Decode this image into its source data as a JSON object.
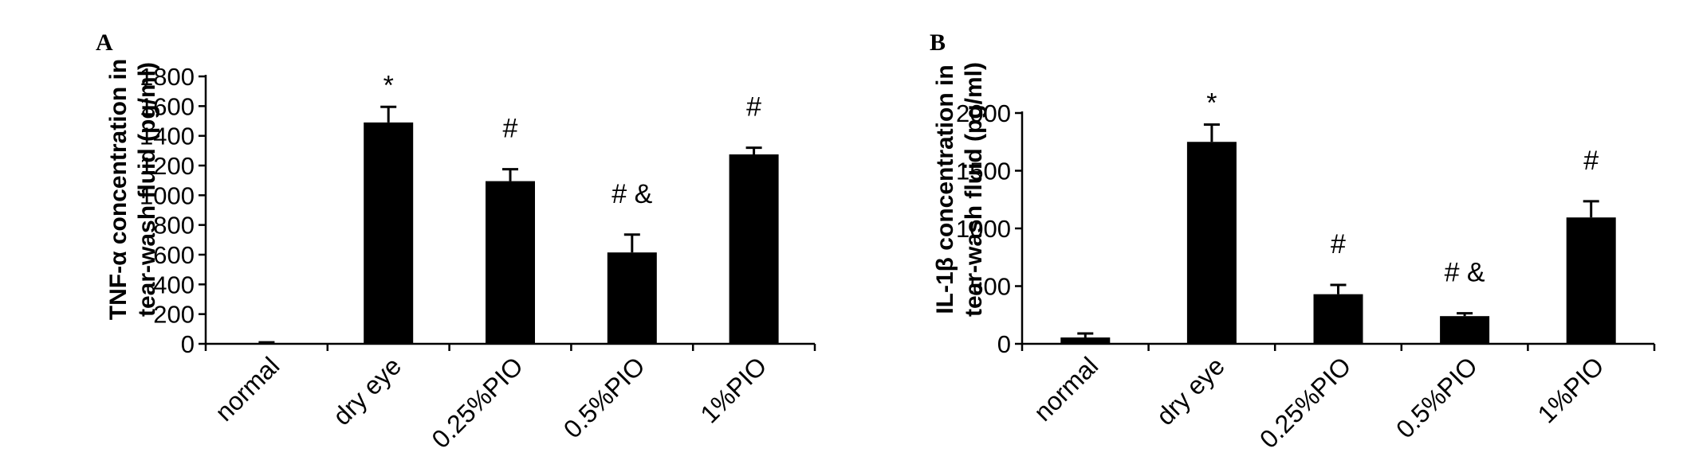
{
  "chart_data": [
    {
      "type": "bar",
      "panel_label": "A",
      "ylabel": [
        "TNF-α concentration in",
        "tear-wash fluid (pg/ml)"
      ],
      "ylim": [
        0,
        1800
      ],
      "yticks": [
        0,
        200,
        400,
        600,
        800,
        1000,
        1200,
        1400,
        1600,
        1800
      ],
      "categories": [
        "normal",
        "dry eye",
        "0.25%PIO",
        "0.5%PIO",
        "1%PIO"
      ],
      "values": [
        5,
        1490,
        1095,
        615,
        1275
      ],
      "errors": [
        5,
        105,
        80,
        120,
        45
      ],
      "annotations": [
        "",
        "*",
        "#",
        "# &",
        "#"
      ],
      "bar_color": "#000000",
      "grid": false
    },
    {
      "type": "bar",
      "panel_label": "B",
      "ylabel": [
        "IL-1β concentration in",
        "tear-wash fluid (pg/ml)"
      ],
      "ylim": [
        0,
        2000
      ],
      "yticks": [
        0,
        500,
        1000,
        1500,
        2000
      ],
      "categories": [
        "normal",
        "dry eye",
        "0.25%PIO",
        "0.5%PIO",
        "1%PIO"
      ],
      "values": [
        55,
        1750,
        430,
        240,
        1095
      ],
      "errors": [
        35,
        150,
        80,
        25,
        140
      ],
      "annotations": [
        "*",
        "#",
        "# &",
        "#"
      ],
      "annotation_bars": [
        1,
        2,
        3,
        4
      ],
      "bar_color": "#000000",
      "grid": false
    }
  ]
}
